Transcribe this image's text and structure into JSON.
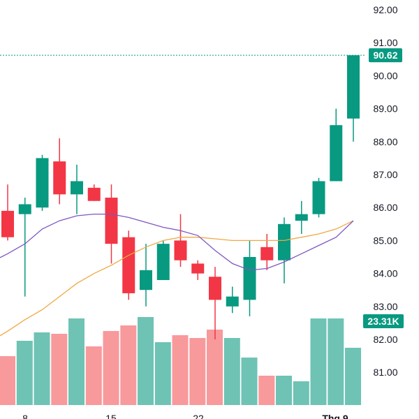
{
  "chart_data": {
    "type": "candlestick",
    "title": "",
    "x_tick_labels": [
      "8",
      "15",
      "22",
      "Thg 9"
    ],
    "y_tick_labels": [
      "92.00",
      "91.00",
      "90.00",
      "89.00",
      "88.00",
      "87.00",
      "86.00",
      "85.00",
      "84.00",
      "83.00",
      "82.00",
      "81.00"
    ],
    "price_range": [
      80.1,
      92.3
    ],
    "last_price_label": "90.62",
    "last_volume_label": "23.31K",
    "colors": {
      "up": "#089981",
      "down": "#f23645",
      "volume_up": "#6ec3b4",
      "volume_down": "#f8999c",
      "ma_fast": "#7e57c2",
      "ma_slow": "#f0a843",
      "last_price_line": "#089981"
    },
    "candles": [
      {
        "o": 85.9,
        "h": 86.7,
        "l": 85.0,
        "c": 85.1
      },
      {
        "o": 85.8,
        "h": 86.3,
        "l": 83.3,
        "c": 86.1
      },
      {
        "o": 86.0,
        "h": 87.6,
        "l": 85.9,
        "c": 87.5
      },
      {
        "o": 87.4,
        "h": 88.1,
        "l": 86.1,
        "c": 86.4
      },
      {
        "o": 86.4,
        "h": 87.3,
        "l": 85.8,
        "c": 86.8
      },
      {
        "o": 86.6,
        "h": 86.7,
        "l": 86.2,
        "c": 86.2
      },
      {
        "o": 86.3,
        "h": 86.7,
        "l": 84.3,
        "c": 84.9
      },
      {
        "o": 85.1,
        "h": 85.3,
        "l": 83.2,
        "c": 83.4
      },
      {
        "o": 83.5,
        "h": 84.9,
        "l": 83.0,
        "c": 84.1
      },
      {
        "o": 83.8,
        "h": 85.0,
        "l": 83.8,
        "c": 84.9
      },
      {
        "o": 85.0,
        "h": 85.8,
        "l": 84.2,
        "c": 84.4
      },
      {
        "o": 84.3,
        "h": 84.4,
        "l": 83.8,
        "c": 84.0
      },
      {
        "o": 83.9,
        "h": 84.2,
        "l": 82.0,
        "c": 83.2
      },
      {
        "o": 83.0,
        "h": 83.6,
        "l": 82.8,
        "c": 83.3
      },
      {
        "o": 83.2,
        "h": 85.0,
        "l": 82.7,
        "c": 84.5
      },
      {
        "o": 84.8,
        "h": 85.2,
        "l": 84.1,
        "c": 84.4
      },
      {
        "o": 84.4,
        "h": 85.7,
        "l": 83.7,
        "c": 85.5
      },
      {
        "o": 85.6,
        "h": 86.2,
        "l": 85.2,
        "c": 85.8
      },
      {
        "o": 85.8,
        "h": 86.9,
        "l": 85.7,
        "c": 86.8
      },
      {
        "o": 86.8,
        "h": 89.0,
        "l": 86.8,
        "c": 88.5
      },
      {
        "o": 88.7,
        "h": 90.6,
        "l": 88.0,
        "c": 90.62
      }
    ],
    "volume_direction": [
      "down",
      "up",
      "up",
      "down",
      "up",
      "down",
      "down",
      "down",
      "up",
      "up",
      "down",
      "down",
      "down",
      "up",
      "up",
      "down",
      "up",
      "up",
      "up",
      "up",
      "up"
    ],
    "volume_relative": [
      0.35,
      0.46,
      0.52,
      0.51,
      0.62,
      0.42,
      0.53,
      0.57,
      0.63,
      0.45,
      0.5,
      0.48,
      0.54,
      0.48,
      0.34,
      0.21,
      0.21,
      0.17,
      0.62,
      0.62,
      0.41
    ],
    "ma_fast": [
      84.6,
      84.9,
      85.35,
      85.6,
      85.75,
      85.8,
      85.8,
      85.7,
      85.55,
      85.4,
      85.3,
      85.15,
      84.7,
      84.3,
      84.1,
      84.15,
      84.35,
      84.6,
      84.85,
      85.1,
      85.6
    ],
    "ma_slow": [
      82.25,
      82.6,
      82.9,
      83.3,
      83.7,
      84.0,
      84.25,
      84.55,
      84.8,
      85.0,
      85.1,
      85.1,
      85.05,
      85.0,
      85.0,
      85.0,
      85.0,
      85.1,
      85.2,
      85.35,
      85.6
    ]
  }
}
